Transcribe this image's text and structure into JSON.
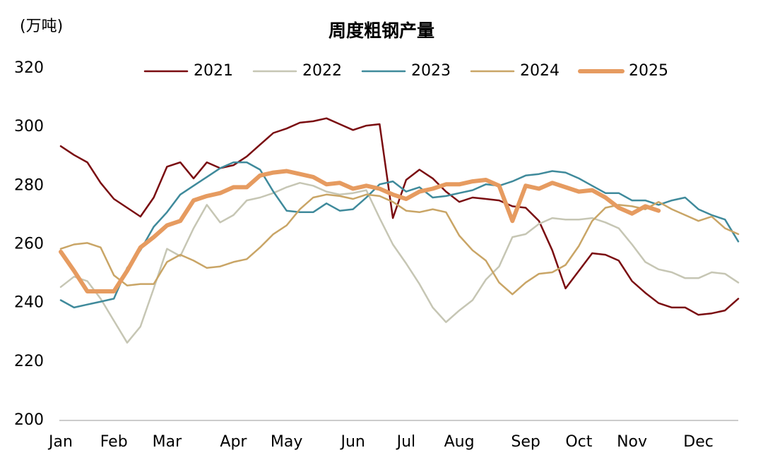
{
  "chart_data": {
    "type": "line",
    "title": "周度粗钢产量",
    "y_label": "(万吨)",
    "categories": [
      "Jan",
      null,
      null,
      null,
      "Feb",
      null,
      null,
      null,
      "Mar",
      null,
      null,
      null,
      null,
      "Apr",
      null,
      null,
      null,
      "May",
      null,
      null,
      null,
      null,
      "Jun",
      null,
      null,
      null,
      "Jul",
      null,
      null,
      null,
      "Aug",
      null,
      null,
      null,
      null,
      "Sep",
      null,
      null,
      null,
      "Oct",
      null,
      null,
      null,
      "Nov",
      null,
      null,
      null,
      null,
      "Dec",
      null,
      null,
      null
    ],
    "ylim": [
      200,
      320
    ],
    "yticks": [
      200,
      220,
      240,
      260,
      280,
      300,
      320
    ],
    "grid": false,
    "legend": "top",
    "series": [
      {
        "name": "2021",
        "color": "#7a0c10",
        "linewidth": 2.5,
        "values": [
          293.5,
          290.5,
          288,
          281,
          275.5,
          272.5,
          269.5,
          276,
          286.5,
          288,
          282.5,
          288,
          286,
          287,
          290,
          294,
          298,
          299.5,
          301.5,
          302,
          303,
          301,
          299,
          300.5,
          301,
          269,
          282,
          285.5,
          282.5,
          278,
          274.5,
          276,
          275.5,
          275,
          273,
          272.5,
          268,
          258,
          245,
          251,
          257,
          256.5,
          254.5,
          247.5,
          243.5,
          240,
          238.5,
          238.5,
          236,
          236.5,
          237.5,
          241.5
        ]
      },
      {
        "name": "2022",
        "color": "#c6c6b4",
        "linewidth": 2.5,
        "values": [
          245.5,
          249,
          247.5,
          241.5,
          234,
          226.5,
          232,
          245,
          258.5,
          256,
          265.5,
          273.5,
          267.5,
          270,
          275,
          276,
          277.5,
          279.5,
          281,
          280,
          278,
          277,
          277.5,
          278.5,
          269,
          260,
          253.5,
          246.5,
          238.5,
          233.5,
          237.5,
          241,
          248,
          252.5,
          262.5,
          263.5,
          267,
          269,
          268.5,
          268.5,
          269,
          267.5,
          265.5,
          260,
          254,
          251.5,
          250.5,
          248.5,
          248.5,
          250.5,
          250,
          247
        ]
      },
      {
        "name": "2023",
        "color": "#3f8a9b",
        "linewidth": 2.5,
        "values": [
          241,
          238.5,
          239.5,
          240.5,
          241.5,
          252,
          258,
          266,
          271,
          277,
          280,
          283,
          286,
          288,
          288,
          285.5,
          278,
          271.5,
          271,
          271,
          274,
          271.5,
          272,
          276,
          280.5,
          281.5,
          278,
          279.5,
          276,
          276.5,
          277.5,
          278.5,
          280.5,
          280,
          281.5,
          283.5,
          284,
          285,
          284.5,
          282.5,
          280,
          277.5,
          277.5,
          275,
          275,
          273.5,
          275,
          276,
          272,
          270,
          268.5,
          261
        ]
      },
      {
        "name": "2024",
        "color": "#c9a566",
        "linewidth": 2.5,
        "values": [
          258.5,
          260,
          260.5,
          259,
          249.5,
          246,
          246.5,
          246.5,
          254,
          256.5,
          254.5,
          252,
          252.5,
          254,
          255,
          259,
          263.5,
          266.5,
          272,
          276,
          277,
          276.5,
          275.5,
          277,
          276.5,
          274.5,
          271.5,
          271,
          272,
          271,
          263,
          258,
          254.5,
          247,
          243,
          247,
          250,
          250.5,
          253,
          259.5,
          268,
          272.5,
          273.5,
          273,
          272,
          274.5,
          272,
          270,
          268,
          269.5,
          265.5,
          263.5
        ]
      },
      {
        "name": "2025",
        "color": "#e69b60",
        "linewidth": 6,
        "values": [
          257.5,
          251,
          244,
          244,
          244,
          251,
          259,
          262.5,
          266.5,
          268,
          275,
          276.5,
          277.5,
          279.5,
          279.5,
          283.5,
          284.5,
          285,
          284,
          283,
          280.5,
          281,
          279,
          280,
          279,
          277,
          275.5,
          278,
          279,
          280.5,
          280.5,
          281.5,
          282,
          280,
          268,
          280,
          279,
          281,
          279.5,
          278,
          278.5,
          276,
          272.5,
          270.5,
          273,
          271.5,
          null,
          null,
          null,
          null,
          null,
          null
        ]
      }
    ]
  }
}
